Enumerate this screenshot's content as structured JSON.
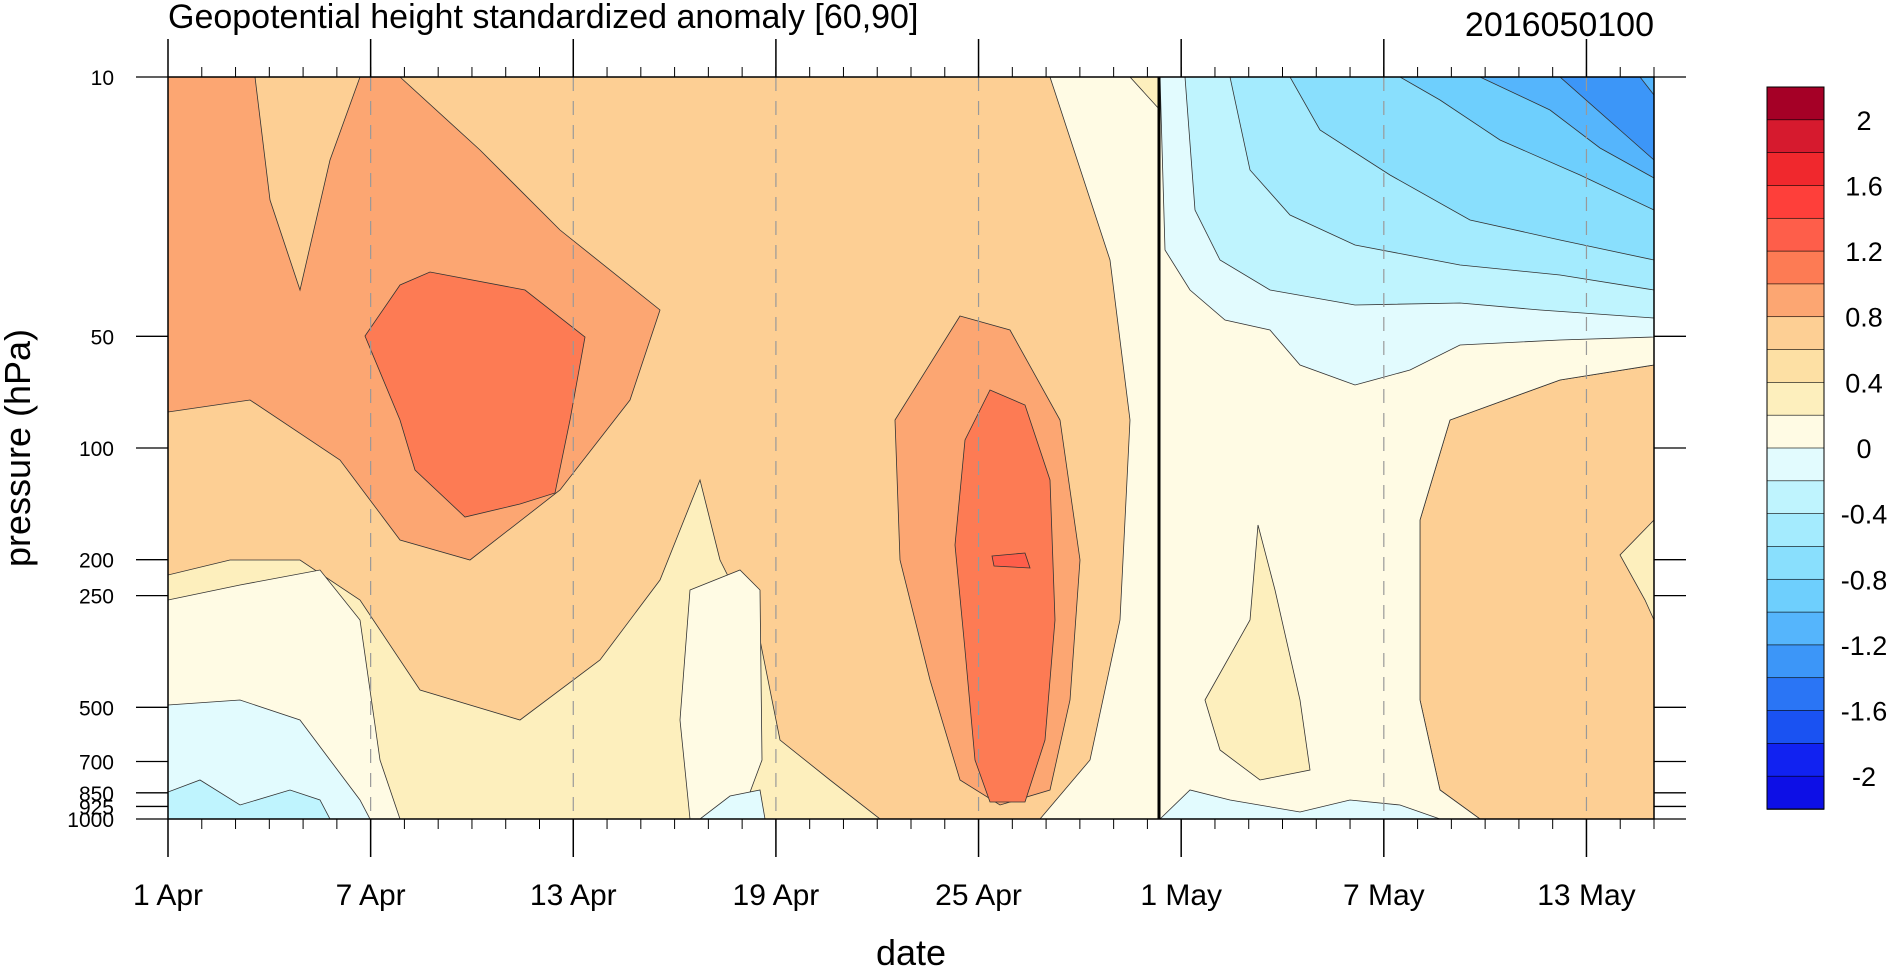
{
  "chart_data": {
    "type": "heatmap",
    "title": "Geopotential height standardized anomaly [60,90]",
    "date_label": "2016050100",
    "xlabel": "date",
    "ylabel": "pressure (hPa)",
    "x_range": [
      "2016-04-01",
      "2016-05-15"
    ],
    "x_ticks": [
      {
        "label": "1 Apr",
        "date": "2016-04-01"
      },
      {
        "label": "7 Apr",
        "date": "2016-04-07"
      },
      {
        "label": "13 Apr",
        "date": "2016-04-13"
      },
      {
        "label": "19 Apr",
        "date": "2016-04-19"
      },
      {
        "label": "25 Apr",
        "date": "2016-04-25"
      },
      {
        "label": "1 May",
        "date": "2016-05-01"
      },
      {
        "label": "7 May",
        "date": "2016-05-07"
      },
      {
        "label": "13 May",
        "date": "2016-05-13"
      }
    ],
    "y_scale": "log",
    "y_range": [
      1000,
      10
    ],
    "y_ticks": [
      "10",
      "50",
      "100",
      "200",
      "250",
      "500",
      "700",
      "850",
      "925",
      "1000"
    ],
    "current_date_line": "2016-05-01",
    "colorbar": {
      "labels": [
        "2",
        "1.6",
        "1.2",
        "0.8",
        "0.4",
        "0",
        "-0.4",
        "-0.8",
        "-1.2",
        "-1.6",
        "-2"
      ],
      "levels": [
        2.2,
        2.0,
        1.8,
        1.6,
        1.4,
        1.2,
        1.0,
        0.8,
        0.6,
        0.4,
        0.2,
        0.0,
        -0.2,
        -0.4,
        -0.6,
        -0.8,
        -1.0,
        -1.2,
        -1.4,
        -1.6,
        -1.8,
        -2.0,
        -2.2
      ],
      "colors": [
        "#a50026",
        "#d61a2e",
        "#f0282d",
        "#fe3f3a",
        "#fe5e4a",
        "#fd7b54",
        "#fca672",
        "#fdcf94",
        "#fde0a4",
        "#fdefbd",
        "#fffbe4",
        "#e2fbfe",
        "#bff4fe",
        "#a4ebfe",
        "#89dffd",
        "#6ecffd",
        "#55b5fc",
        "#3c96f8",
        "#2a75f5",
        "#1a52f2",
        "#1122f1",
        "#0d0fe6"
      ]
    },
    "regions": [
      {
        "note": "strong positive anomaly near 13 Apr / 50-150 hPa",
        "x_dates": [
          "2016-04-07",
          "2016-04-13"
        ],
        "level": 1.2
      },
      {
        "note": "strong positive anomaly near 26 Apr / 70-850 hPa",
        "x_dates": [
          "2016-04-24",
          "2016-04-28"
        ],
        "level": 1.2
      },
      {
        "note": "negative anomaly after 1 May in stratosphere",
        "x_dates": [
          "2016-05-01",
          "2016-05-15"
        ],
        "level": -1.4
      }
    ]
  }
}
